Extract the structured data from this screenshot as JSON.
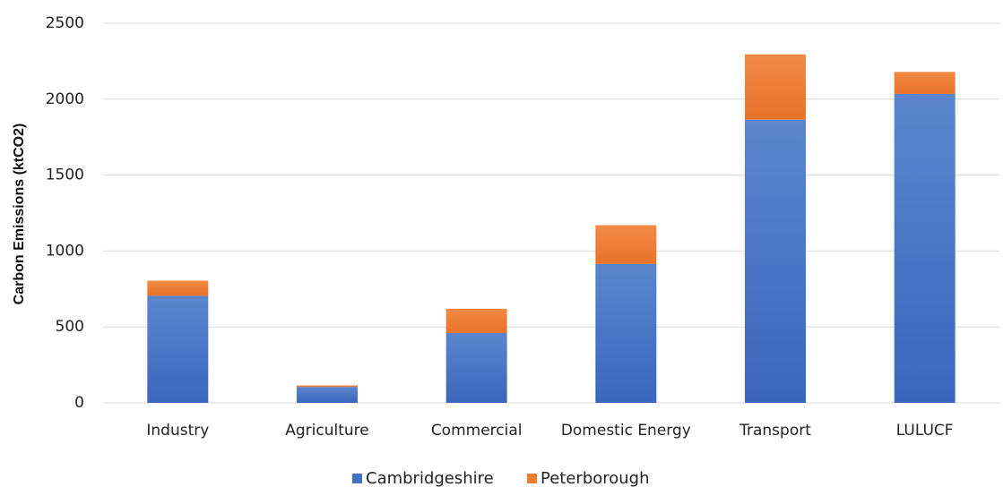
{
  "chart_data": {
    "type": "bar",
    "stacked": true,
    "categories": [
      "Industry",
      "Agriculture",
      "Commercial",
      "Domestic Energy",
      "Transport",
      "LULUCF"
    ],
    "series": [
      {
        "name": "Cambridgeshire",
        "values": [
          705,
          105,
          460,
          915,
          1865,
          2035
        ],
        "color": "#4472C4"
      },
      {
        "name": "Peterborough",
        "values": [
          100,
          10,
          160,
          255,
          430,
          145
        ],
        "color": "#ED7D31"
      }
    ],
    "title": "",
    "xlabel": "",
    "ylabel": "Carbon Emissions (ktCO2)",
    "ylim": [
      0,
      2500
    ],
    "yticks": [
      0,
      500,
      1000,
      1500,
      2000,
      2500
    ],
    "grid": true,
    "legend_position": "bottom"
  }
}
